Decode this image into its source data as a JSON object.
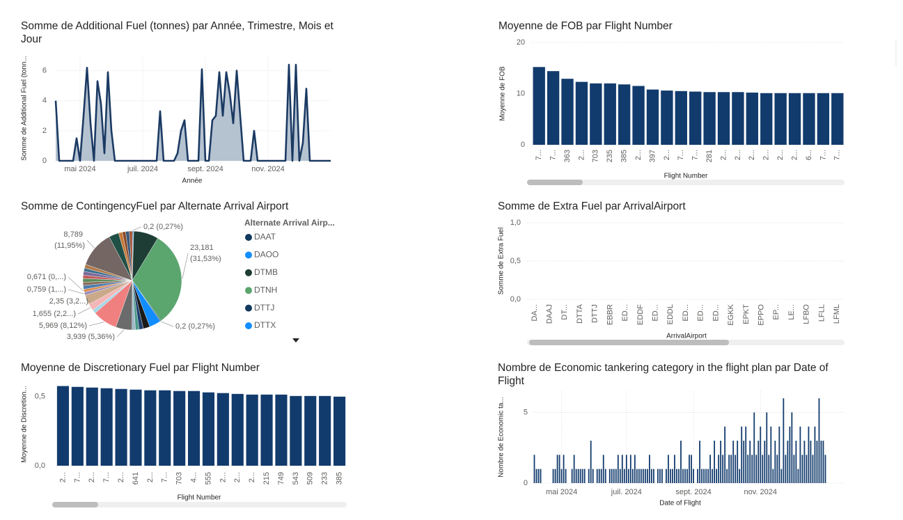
{
  "chart_data": [
    {
      "type": "area",
      "title": "Somme de Additional Fuel (tonnes) par Année, Trimestre, Mois et Jour",
      "x_label": "Année",
      "y_label": "Somme de Additional Fuel (tonn...",
      "categories": [
        null,
        null,
        null,
        null,
        null,
        null,
        null,
        "mai 2024",
        null,
        null,
        null,
        null,
        null,
        null,
        null,
        null,
        null,
        null,
        null,
        null,
        null,
        null,
        null,
        null,
        null,
        "juil. 2024",
        null,
        null,
        null,
        null,
        null,
        null,
        null,
        null,
        null,
        null,
        null,
        null,
        null,
        null,
        null,
        null,
        null,
        "sept. 2024",
        null,
        null,
        null,
        null,
        null,
        null,
        null,
        null,
        null,
        null,
        null,
        null,
        null,
        null,
        null,
        null,
        null,
        "nov. 2024",
        null,
        null,
        null,
        null,
        null,
        null,
        null,
        null,
        null,
        null,
        null,
        null,
        null,
        null,
        null,
        null,
        null,
        null
      ],
      "values": [
        4,
        0,
        0,
        0,
        0,
        0,
        1.5,
        0,
        3,
        6.2,
        2.5,
        0,
        5.3,
        3.8,
        0.5,
        5.9,
        2,
        0,
        0,
        0,
        0,
        0,
        0,
        0,
        0,
        0,
        0,
        0,
        0,
        0,
        3.3,
        0,
        0,
        0,
        0,
        0.5,
        2,
        2.7,
        0,
        0,
        0,
        0,
        6.1,
        0,
        0,
        2.7,
        3,
        5.9,
        3,
        5.9,
        4.5,
        2.5,
        6.0,
        3,
        0,
        0,
        0,
        2,
        0,
        0,
        0,
        0,
        0,
        0,
        0,
        0,
        0,
        6.4,
        0,
        6.4,
        0,
        1.2,
        4.8,
        0,
        0,
        0,
        0,
        0,
        0,
        0
      ],
      "color": "#1b3a63",
      "fill_color": "#a8b7c8",
      "ylim": [
        0,
        7
      ],
      "yticks": [
        0,
        2,
        4,
        6
      ],
      "grid": true,
      "x_grid": true
    },
    {
      "type": "bar",
      "title": "Moyenne de FOB par Flight Number",
      "x_label": "Flight Number",
      "y_label": "Moyenne de FOB",
      "categories": [
        "7...",
        "7...",
        "363",
        "2...",
        "703",
        "235",
        "385",
        "2...",
        "397",
        "2...",
        "7...",
        "7...",
        "281",
        "2...",
        "2...",
        "2...",
        "2...",
        "2...",
        "2...",
        "6...",
        "7...",
        "7..."
      ],
      "values": [
        15.2,
        14.4,
        12.9,
        12.3,
        12.0,
        12.0,
        11.8,
        11.5,
        10.8,
        10.6,
        10.5,
        10.4,
        10.3,
        10.3,
        10.3,
        10.2,
        10.1,
        10.1,
        10.1,
        10.1,
        10.1,
        10.1
      ],
      "color": "#123b6d",
      "ylim": [
        0,
        20
      ],
      "yticks": [
        0,
        10,
        20
      ],
      "grid": true
    },
    {
      "type": "pie",
      "title": "Somme de ContingencyFuel par Alternate Arrival Airport",
      "legend_title": "Alternate Arrival Airp...",
      "categories": [
        "DAAT",
        "DAOO",
        "DTMB",
        "DTNH",
        "DTTJ",
        "DTTX",
        null,
        null,
        null,
        null,
        null,
        null,
        null,
        null,
        null,
        null,
        null,
        null,
        null,
        null,
        null,
        null,
        null,
        null,
        null,
        null,
        null,
        null,
        null,
        null
      ],
      "values": [
        0.2,
        0.15,
        6.0,
        23.181,
        0.2,
        2.8,
        1.6,
        1.0,
        0.9,
        0.8,
        3.939,
        5.969,
        0.9,
        1.655,
        2.35,
        0.759,
        0.671,
        0.9,
        0.8,
        0.9,
        0.8,
        0.9,
        0.8,
        0.9,
        8.789,
        2.4,
        0.9,
        0.8,
        0.9,
        0.7
      ],
      "value_labels": [
        "0,2 (0,27%)",
        null,
        null,
        "23,181 (31,53%)",
        "0,2 (0,27%)",
        null,
        null,
        null,
        null,
        null,
        "3,939 (5,36%)",
        "5,969 (8,12%)",
        null,
        "1,655 (2,2...)",
        "2,35 (3,2...)",
        "0,759 (1,...)",
        "0,671 (0,...)",
        null,
        null,
        null,
        null,
        null,
        null,
        null,
        "8,789 (11,95%)",
        null,
        null,
        null,
        null,
        null
      ],
      "colors": [
        "#12395f",
        "#118dff",
        "#1d3d35",
        "#5ba56f",
        "#12395f",
        "#118dff",
        "#1a1a1a",
        "#1f3e6e",
        "#4c9a8a",
        "#9fb8c9",
        "#6b6b6b",
        "#f08080",
        "#a6d8e8",
        "#f4b6b6",
        "#c9a98a",
        "#9c8db8",
        "#d98a4a",
        "#4a7ab0",
        "#8a6d5a",
        "#5b8c5a",
        "#c25a5a",
        "#7a6a9a",
        "#3f6f8f",
        "#b07a4a",
        "#736663",
        "#1f4f45",
        "#c47a3a",
        "#8b4a2a",
        "#3a5a7a",
        "#a05030"
      ]
    },
    {
      "type": "bar",
      "title": "Moyenne de Discretionary Fuel par Flight Number",
      "x_label": "Flight Number",
      "y_label": "Moyenne de Discretion...",
      "categories": [
        "2...",
        "7...",
        "2...",
        "7...",
        "2...",
        "641",
        "2...",
        "7...",
        "703",
        "4...",
        "555",
        "2...",
        "2...",
        "2...",
        "215",
        "749",
        "543",
        "509",
        "233",
        "385"
      ],
      "values": [
        0.577,
        0.571,
        0.566,
        0.561,
        0.556,
        0.551,
        0.546,
        0.546,
        0.541,
        0.541,
        0.531,
        0.526,
        0.52,
        0.515,
        0.515,
        0.515,
        0.505,
        0.505,
        0.505,
        0.5
      ],
      "color": "#123b6d",
      "ylim": [
        0,
        0.6
      ],
      "yticks": [
        {
          "value": 0,
          "label": "0,0"
        },
        {
          "value": 0.5,
          "label": "0,5"
        }
      ],
      "grid": true
    },
    {
      "type": "bar",
      "title": "Somme de Extra Fuel par ArrivalAirport",
      "x_label": "ArrivalAirport",
      "y_label": "Somme de Extra Fuel",
      "categories": [
        "DA...",
        "DAAJ",
        "DT...",
        "DTTA",
        "DTTJ",
        "EBBR",
        "ED...",
        "EDDF",
        "ED...",
        "EDDL",
        "ED...",
        "ED...",
        "ED...",
        "EGKK",
        "EPKT",
        "EPPO",
        "EP...",
        "LE...",
        "LFBO",
        "LFLL",
        "LFML"
      ],
      "values": [
        0,
        0,
        0,
        0,
        0,
        0,
        0,
        0,
        0,
        0,
        0,
        0,
        0,
        0,
        0,
        0,
        0,
        0,
        0,
        0,
        0
      ],
      "color": "#123b6d",
      "ylim": [
        0,
        1
      ],
      "yticks": [
        {
          "value": 0,
          "label": "0,0"
        },
        {
          "value": 0.5,
          "label": "0,5"
        },
        {
          "value": 1,
          "label": "1,0"
        }
      ],
      "grid": true
    },
    {
      "type": "bar",
      "title": "Nombre de Economic tankering category in the flight plan par Date of Flight",
      "x_label": "Date of Flight",
      "y_label": "Nombre de Economic ta...",
      "categories": [
        null,
        null,
        null,
        null,
        null,
        null,
        null,
        null,
        null,
        null,
        null,
        null,
        null,
        "mai 2024",
        null,
        null,
        null,
        null,
        null,
        null,
        null,
        null,
        null,
        null,
        null,
        null,
        null,
        null,
        null,
        null,
        null,
        null,
        null,
        null,
        null,
        null,
        null,
        null,
        null,
        null,
        null,
        null,
        null,
        null,
        "juil. 2024",
        null,
        null,
        null,
        null,
        null,
        null,
        null,
        null,
        null,
        null,
        null,
        null,
        null,
        null,
        null,
        null,
        null,
        null,
        null,
        null,
        null,
        null,
        null,
        null,
        null,
        null,
        null,
        null,
        null,
        null,
        null,
        "sept. 2024",
        null,
        null,
        null,
        null,
        null,
        null,
        null,
        null,
        null,
        null,
        null,
        null,
        null,
        null,
        null,
        null,
        null,
        null,
        null,
        null,
        null,
        null,
        null,
        null,
        null,
        null,
        null,
        null,
        null,
        null,
        null,
        "nov. 2024",
        null,
        null,
        null,
        null,
        null,
        null,
        null,
        null,
        null,
        null,
        null,
        null,
        null,
        null,
        null,
        null,
        null,
        null,
        null,
        null,
        null,
        null,
        null,
        null,
        null,
        null,
        null,
        null,
        null,
        null,
        null
      ],
      "values": [
        2,
        1,
        1,
        1,
        0,
        0,
        0,
        0,
        0,
        1,
        1,
        2,
        2,
        1,
        2,
        1,
        0,
        0,
        1,
        2,
        1,
        1,
        1,
        1,
        1,
        0,
        1,
        3,
        1,
        0,
        1,
        1,
        1,
        2,
        1,
        0,
        1,
        1,
        1,
        1,
        2,
        1,
        2,
        1,
        2,
        1,
        2,
        1,
        2,
        1,
        1,
        1,
        1,
        1,
        1,
        2,
        1,
        1,
        0,
        1,
        1,
        1,
        0,
        1,
        2,
        1,
        1,
        2,
        1,
        1,
        3,
        1,
        1,
        1,
        2,
        2,
        1,
        0,
        1,
        3,
        1,
        1,
        1,
        1,
        2,
        1,
        3,
        1,
        2,
        3,
        2,
        4,
        1,
        2,
        2,
        3,
        2,
        3,
        1,
        4,
        3,
        4,
        2,
        3,
        2,
        5,
        2,
        3,
        4,
        2,
        3,
        5,
        2,
        4,
        1,
        3,
        2,
        4,
        1,
        6,
        2,
        3,
        4,
        5,
        2,
        3,
        1,
        4,
        2,
        3,
        2,
        4,
        3,
        2,
        4,
        3,
        6,
        3,
        3,
        2
      ],
      "color": "#123b6d",
      "ylim": [
        0,
        6.5
      ],
      "yticks": [
        0,
        5
      ],
      "grid": true,
      "x_grid": true
    }
  ]
}
